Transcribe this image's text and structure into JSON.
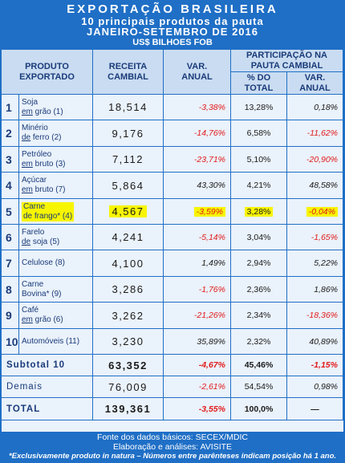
{
  "header": {
    "title": "EXPORTAÇÃO BRASILEIRA",
    "subtitle": "10 principais produtos da pauta",
    "period": "JANEIRO-SETEMBRO DE 2016",
    "unit": "US$ BILHOES FOB"
  },
  "columns": {
    "produto": "PRODUTO EXPORTADO",
    "receita": "RECEITA CAMBIAL",
    "var": "VAR. ANUAL",
    "participacao": "PARTICIPAÇÃO NA PAUTA CAMBIAL",
    "pct_total": "% DO TOTAL",
    "var2": "VAR. ANUAL"
  },
  "rows": [
    {
      "rank": "1",
      "line1": "Soja",
      "line2": "em grão (1)",
      "receita": "18,514",
      "var": "-3,38%",
      "pct": "13,28%",
      "var2": "0,18%"
    },
    {
      "rank": "2",
      "line1": "Minério",
      "line2": "de ferro (2)",
      "receita": "9,176",
      "var": "-14,76%",
      "pct": "6,58%",
      "var2": "-11,62%"
    },
    {
      "rank": "3",
      "line1": "Petróleo",
      "line2": "em bruto (3)",
      "receita": "7,112",
      "var": "-23,71%",
      "pct": "5,10%",
      "var2": "-20,90%"
    },
    {
      "rank": "4",
      "line1": "Açúcar",
      "line2": "em bruto (7)",
      "receita": "5,864",
      "var": "43,30%",
      "pct": "4,21%",
      "var2": "48,58%"
    },
    {
      "rank": "5",
      "line1": "Carne",
      "line2": "de frango* (4)",
      "receita": "4,567",
      "var": "-3,59%",
      "pct": "3,28%",
      "var2": "-0,04%"
    },
    {
      "rank": "6",
      "line1": "Farelo",
      "line2": "de soja (5)",
      "receita": "4,241",
      "var": "-5,14%",
      "pct": "3,04%",
      "var2": "-1,65%"
    },
    {
      "rank": "7",
      "line1": "Celulose (8)",
      "line2": "",
      "receita": "4,100",
      "var": "1,49%",
      "pct": "2,94%",
      "var2": "5,22%"
    },
    {
      "rank": "8",
      "line1": "Carne",
      "line2": "Bovina* (9)",
      "receita": "3,286",
      "var": "-1,76%",
      "pct": "2,36%",
      "var2": "1,86%"
    },
    {
      "rank": "9",
      "line1": "Café",
      "line2": "em grão (6)",
      "receita": "3,262",
      "var": "-21,26%",
      "pct": "2,34%",
      "var2": "-18,36%"
    },
    {
      "rank": "10",
      "line1": "Automóveis (11)",
      "line2": "",
      "receita": "3,230",
      "var": "35,89%",
      "pct": "2,32%",
      "var2": "40,89%"
    }
  ],
  "subtotal": {
    "label": "Subtotal 10",
    "receita": "63,352",
    "var": "-4,67%",
    "pct": "45,46%",
    "var2": "-1,15%"
  },
  "demais": {
    "label": "Demais",
    "receita": "76,009",
    "var": "-2,61%",
    "pct": "54,54%",
    "var2": "0,98%"
  },
  "total": {
    "label": "TOTAL",
    "receita": "139,361",
    "var": "-3,55%",
    "pct": "100,0%",
    "var2": "—"
  },
  "footer": {
    "source": "Fonte dos dados básicos: SECEX/MDIC",
    "credits": "Elaboração e análises: AVISITE",
    "note": "*Exclusivamente produto in natura – Números entre parênteses indicam posição há 1 ano."
  }
}
